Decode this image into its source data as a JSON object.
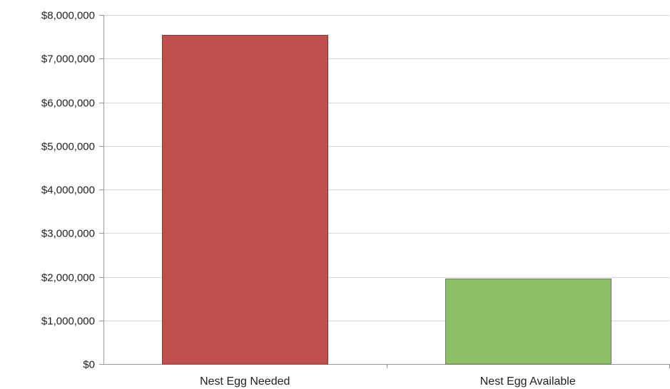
{
  "chart_data": {
    "type": "bar",
    "title": "",
    "xlabel": "",
    "ylabel": "",
    "categories": [
      "Nest Egg Needed",
      "Nest Egg Available"
    ],
    "values": [
      7540000,
      1960000
    ],
    "bar_colors": [
      "#c0504d",
      "#8cc265"
    ],
    "bar_border_colors": [
      "#9a3330",
      "#6f7a66"
    ],
    "ylim": [
      0,
      8000000
    ],
    "yticks": [
      0,
      1000000,
      2000000,
      3000000,
      4000000,
      5000000,
      6000000,
      7000000,
      8000000
    ],
    "ytick_labels": [
      "$0",
      "$1,000,000",
      "$2,000,000",
      "$3,000,000",
      "$4,000,000",
      "$5,000,000",
      "$6,000,000",
      "$7,000,000",
      "$8,000,000"
    ],
    "grid": true,
    "legend": "none"
  }
}
